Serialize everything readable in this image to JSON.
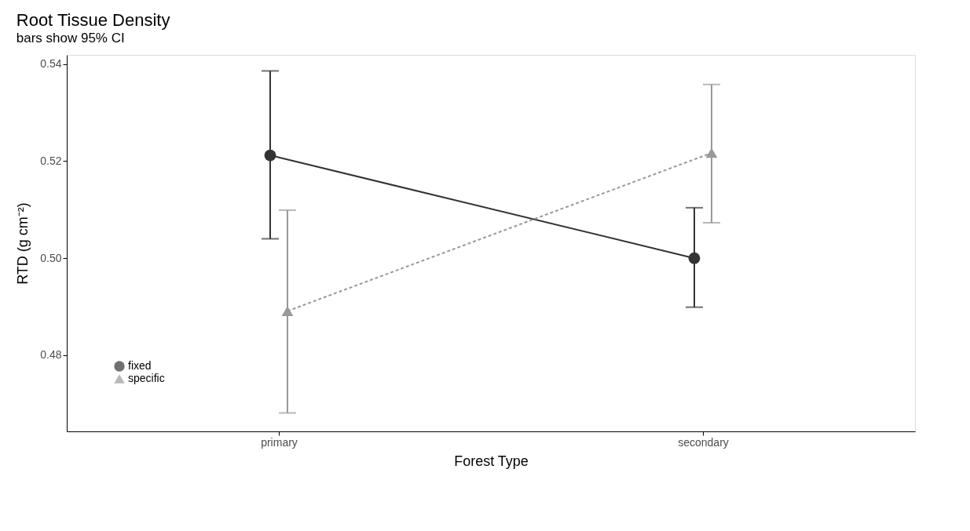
{
  "chart_data": {
    "type": "line",
    "title": "Root Tissue Density",
    "subtitle": "bars show 95% CI",
    "xlabel": "Forest Type",
    "ylabel": "RTD (g cm⁻²)",
    "categories": [
      "primary",
      "secondary"
    ],
    "series": [
      {
        "name": "fixed",
        "color": "#333333",
        "marker": "circle",
        "line_style": "solid",
        "values": [
          0.5212,
          0.5
        ],
        "errors": [
          [
            0.504,
            0.5386
          ],
          [
            0.4899,
            0.5104
          ]
        ]
      },
      {
        "name": "specific",
        "color": "#999999",
        "marker": "triangle",
        "line_style": "dashed",
        "values": [
          0.4891,
          0.5217
        ],
        "errors": [
          [
            0.4681,
            0.5099
          ],
          [
            0.5073,
            0.5358
          ]
        ]
      }
    ],
    "ylim": [
      0.4643,
      0.5419
    ],
    "yticks": [
      0.48,
      {
        "value": 0.5,
        "label": "0.50"
      },
      0.52,
      0.54
    ],
    "grid": false,
    "legend": "bottom left"
  }
}
